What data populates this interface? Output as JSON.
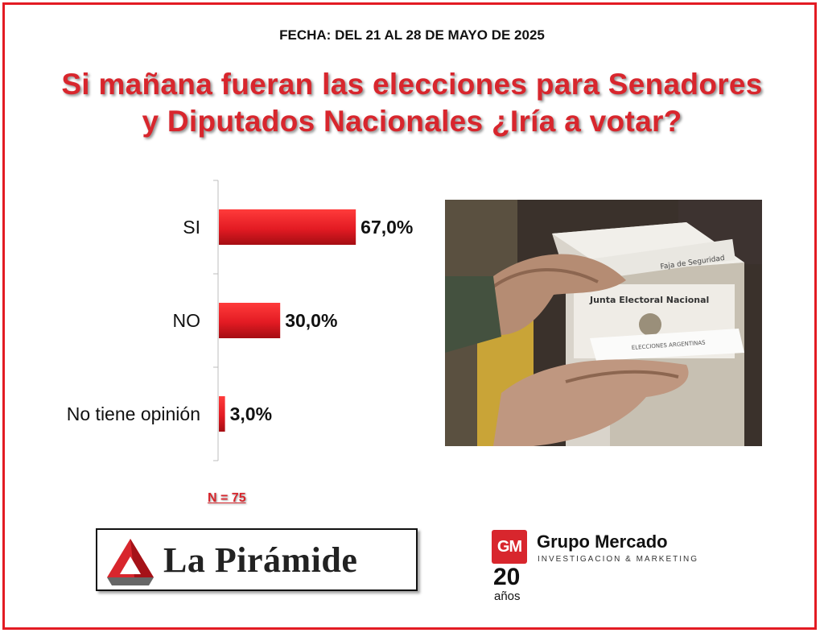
{
  "header": {
    "date": "FECHA: DEL 21 AL 28 DE MAYO DE 2025",
    "title_line1": "Si mañana fueran las elecciones para Senadores",
    "title_line2": "y Diputados Nacionales ¿Iría a votar?"
  },
  "chart_data": {
    "type": "bar",
    "orientation": "horizontal",
    "categories": [
      "SI",
      "NO",
      "No tiene opinión"
    ],
    "values": [
      67.0,
      30.0,
      3.0
    ],
    "value_labels": [
      "67,0%",
      "30,0%",
      "3,0%"
    ],
    "xlim": [
      0,
      100
    ],
    "grid": false,
    "bar_color": "#e31b23"
  },
  "sample": {
    "n_label": "N = 75"
  },
  "photo": {
    "icon": "ballot-box-photo",
    "box_label": "Junta Electoral Nacional",
    "tape_label": "Faja de Seguridad",
    "envelope_label": "ELECCIONES ARGENTINAS"
  },
  "logos": {
    "piramide": {
      "name": "La Pirámide",
      "icon": "pyramid-logo-icon"
    },
    "grupo_mercado": {
      "badge": "GM",
      "name": "Grupo Mercado",
      "tagline": "INVESTIGACION & MARKETING",
      "years": "20",
      "years_word": "años"
    }
  },
  "colors": {
    "accent": "#d8262d",
    "frame": "#e31b23"
  }
}
